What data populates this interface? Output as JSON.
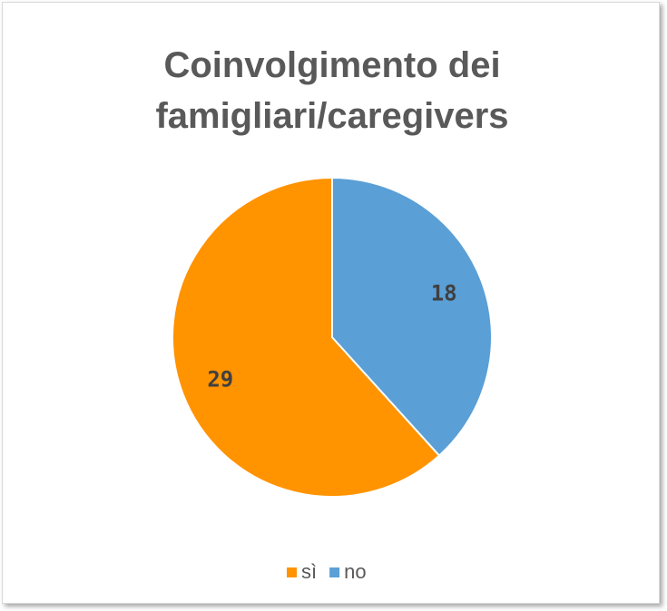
{
  "chart_data": {
    "type": "pie",
    "title": "Coinvolgimento dei famigliari/caregivers",
    "categories": [
      "sì",
      "no"
    ],
    "values": [
      29,
      18
    ],
    "colors": [
      "#ff9300",
      "#5a9fd6"
    ],
    "legend": "bottom"
  }
}
